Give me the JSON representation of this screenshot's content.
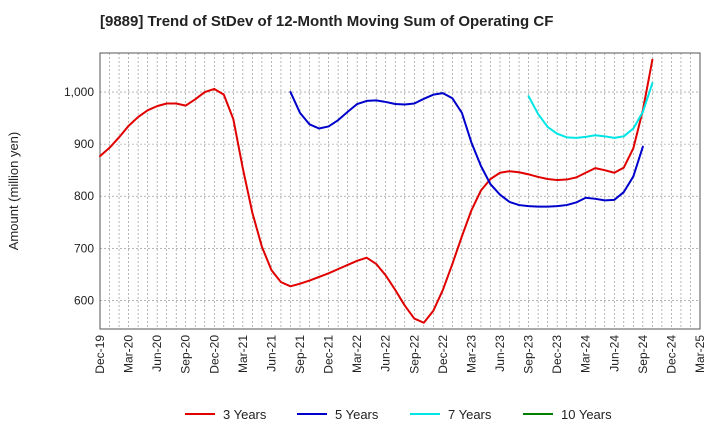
{
  "chart_data": {
    "type": "line",
    "title": "[9889]  Trend of StDev of 12-Month Moving Sum of Operating CF",
    "xlabel": "",
    "ylabel": "Amount (million yen)",
    "ylim": [
      545,
      1075
    ],
    "yticks": [
      600,
      700,
      800,
      900,
      1000
    ],
    "ytick_labels": [
      "600",
      "700",
      "800",
      "900",
      "1,000"
    ],
    "x_categories": [
      "Dec-19",
      "Mar-20",
      "Jun-20",
      "Sep-20",
      "Dec-20",
      "Mar-21",
      "Jun-21",
      "Sep-21",
      "Dec-21",
      "Mar-22",
      "Jun-22",
      "Sep-22",
      "Dec-22",
      "Mar-23",
      "Jun-23",
      "Sep-23",
      "Dec-23",
      "Mar-24",
      "Jun-24",
      "Sep-24",
      "Dec-24",
      "Mar-25"
    ],
    "grid": true,
    "legend_position": "bottom",
    "series": [
      {
        "name": "3 Years",
        "color": "#e00000",
        "start_index": 0,
        "values": [
          877,
          893,
          913,
          935,
          952,
          965,
          973,
          978,
          978,
          974,
          986,
          1000,
          1006,
          995,
          948,
          853,
          768,
          703,
          658,
          635,
          627,
          632,
          638,
          645,
          652,
          660,
          668,
          676,
          682,
          670,
          648,
          620,
          590,
          565,
          557,
          580,
          620,
          670,
          723,
          773,
          811,
          833,
          845,
          848,
          846,
          842,
          837,
          833,
          831,
          832,
          836,
          845,
          854,
          850,
          845,
          855,
          892,
          965,
          1062
        ]
      },
      {
        "name": "5 Years",
        "color": "#0000cc",
        "start_index": 20,
        "values": [
          1000,
          960,
          938,
          930,
          934,
          946,
          962,
          977,
          983,
          984,
          981,
          977,
          976,
          978,
          987,
          995,
          998,
          988,
          960,
          903,
          858,
          823,
          803,
          789,
          783,
          781,
          780,
          780,
          781,
          783,
          788,
          797,
          795,
          792,
          793,
          808,
          838,
          895
        ]
      },
      {
        "name": "7 Years",
        "color": "#00e5e5",
        "start_index": 45,
        "values": [
          992,
          958,
          933,
          920,
          913,
          912,
          914,
          917,
          915,
          912,
          915,
          930,
          962,
          1017
        ]
      },
      {
        "name": "10 Years",
        "color": "#008000",
        "start_index": 0,
        "values": []
      }
    ]
  }
}
